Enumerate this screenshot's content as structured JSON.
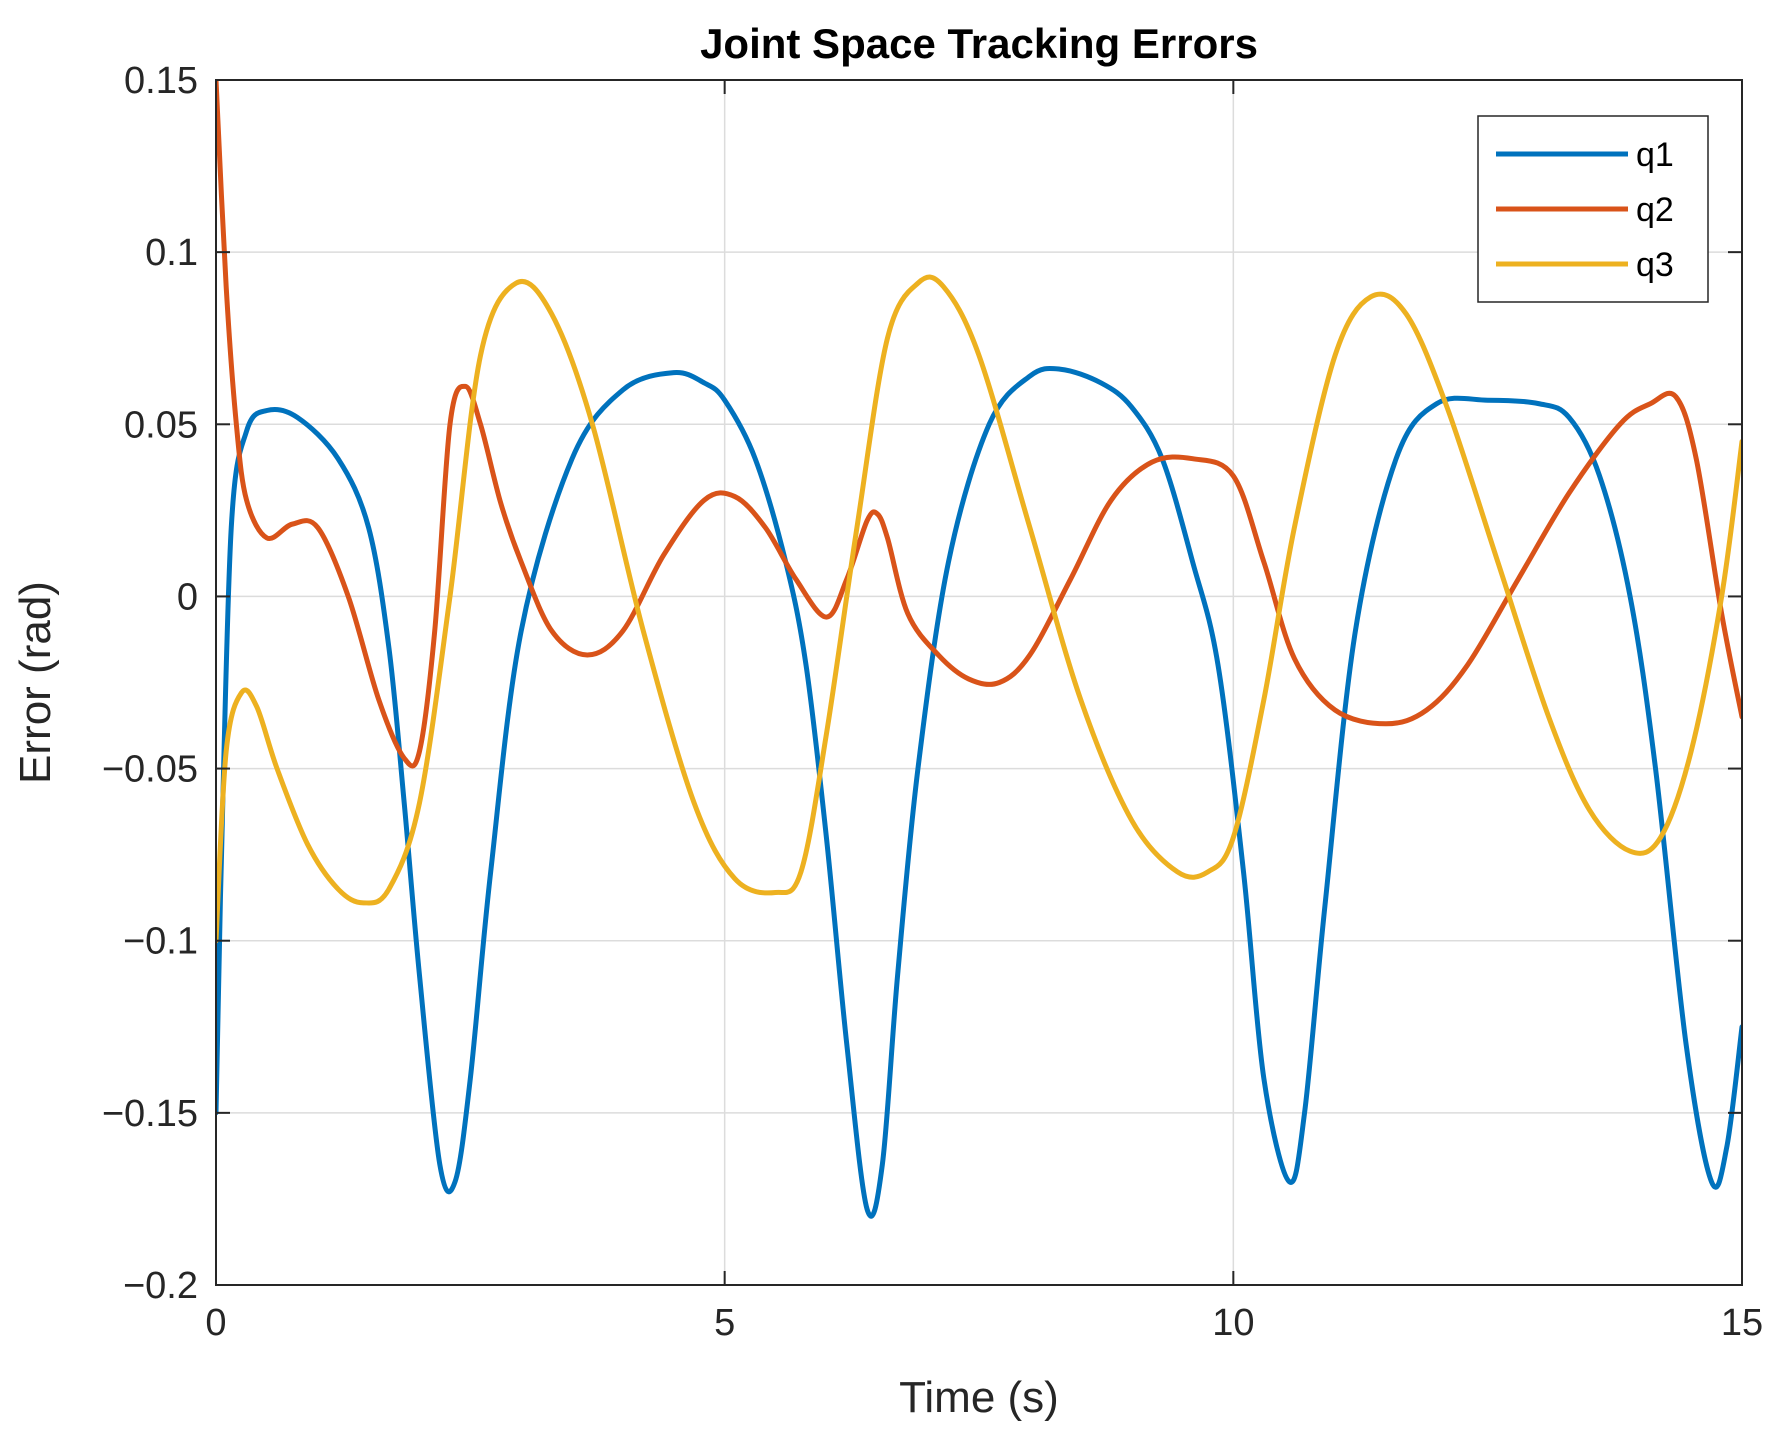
{
  "chart_data": {
    "type": "line",
    "title": "Joint Space Tracking Errors",
    "xlabel": "Time (s)",
    "ylabel": "Error (rad)",
    "xlim": [
      0,
      15
    ],
    "ylim": [
      -0.2,
      0.15
    ],
    "xticks": [
      0,
      5,
      10,
      15
    ],
    "xtick_labels": [
      "0",
      "5",
      "10",
      "15"
    ],
    "yticks": [
      -0.2,
      -0.15,
      -0.1,
      -0.05,
      0,
      0.05,
      0.1,
      0.15
    ],
    "ytick_labels": [
      "−0.2",
      "−0.15",
      "−0.1",
      "−0.05",
      "0",
      "0.05",
      "0.1",
      "0.15"
    ],
    "grid": true,
    "legend_position": "top-right",
    "series": [
      {
        "name": "q1",
        "color": "#0072BD",
        "x": [
          0,
          0.05,
          0.15,
          0.3,
          0.5,
          0.8,
          1.2,
          1.5,
          1.7,
          1.85,
          2.0,
          2.2,
          2.35,
          2.5,
          2.7,
          3.0,
          3.5,
          4.0,
          4.5,
          4.8,
          5.0,
          5.3,
          5.6,
          5.8,
          6.0,
          6.2,
          6.4,
          6.55,
          6.7,
          6.9,
          7.2,
          7.6,
          8.0,
          8.3,
          8.7,
          9.0,
          9.3,
          9.6,
          9.85,
          10.1,
          10.3,
          10.55,
          10.7,
          10.9,
          11.2,
          11.6,
          12.0,
          12.5,
          13.0,
          13.3,
          13.6,
          13.9,
          14.15,
          14.45,
          14.7,
          14.85,
          15.0
        ],
        "y": [
          -0.15,
          -0.08,
          0.02,
          0.048,
          0.054,
          0.052,
          0.04,
          0.02,
          -0.015,
          -0.06,
          -0.11,
          -0.165,
          -0.17,
          -0.14,
          -0.08,
          -0.01,
          0.04,
          0.06,
          0.065,
          0.062,
          0.057,
          0.04,
          0.01,
          -0.02,
          -0.07,
          -0.13,
          -0.178,
          -0.165,
          -0.11,
          -0.05,
          0.01,
          0.05,
          0.064,
          0.066,
          0.062,
          0.055,
          0.04,
          0.01,
          -0.02,
          -0.08,
          -0.14,
          -0.17,
          -0.15,
          -0.09,
          -0.01,
          0.04,
          0.056,
          0.057,
          0.056,
          0.052,
          0.035,
          0.0,
          -0.05,
          -0.13,
          -0.17,
          -0.16,
          -0.125
        ]
      },
      {
        "name": "q2",
        "color": "#D95319",
        "x": [
          0,
          0.1,
          0.2,
          0.3,
          0.5,
          0.75,
          1.0,
          1.3,
          1.6,
          1.85,
          2.0,
          2.15,
          2.3,
          2.45,
          2.6,
          2.8,
          3.0,
          3.3,
          3.65,
          4.0,
          4.4,
          4.8,
          5.1,
          5.4,
          5.7,
          6.0,
          6.2,
          6.4,
          6.5,
          6.6,
          6.8,
          7.1,
          7.4,
          7.7,
          8.0,
          8.4,
          8.8,
          9.2,
          9.6,
          10.0,
          10.3,
          10.6,
          11.0,
          11.5,
          11.9,
          12.3,
          12.8,
          13.3,
          13.8,
          14.1,
          14.35,
          14.55,
          14.8,
          15.0
        ],
        "y": [
          0.15,
          0.09,
          0.05,
          0.028,
          0.017,
          0.021,
          0.02,
          0.0,
          -0.03,
          -0.047,
          -0.045,
          -0.01,
          0.05,
          0.061,
          0.05,
          0.027,
          0.01,
          -0.01,
          -0.017,
          -0.01,
          0.012,
          0.028,
          0.029,
          0.02,
          0.005,
          -0.006,
          0.005,
          0.022,
          0.024,
          0.017,
          -0.005,
          -0.017,
          -0.024,
          -0.025,
          -0.017,
          0.005,
          0.028,
          0.039,
          0.04,
          0.035,
          0.01,
          -0.018,
          -0.033,
          -0.037,
          -0.033,
          -0.02,
          0.005,
          0.03,
          0.05,
          0.056,
          0.058,
          0.04,
          -0.005,
          -0.035
        ]
      },
      {
        "name": "q3",
        "color": "#EDB120",
        "x": [
          0,
          0.1,
          0.25,
          0.4,
          0.6,
          0.9,
          1.2,
          1.45,
          1.7,
          2.0,
          2.3,
          2.6,
          2.95,
          3.3,
          3.7,
          4.2,
          4.7,
          5.1,
          5.5,
          5.75,
          6.0,
          6.3,
          6.6,
          6.9,
          7.15,
          7.5,
          8.0,
          8.5,
          9.0,
          9.45,
          9.75,
          10.0,
          10.3,
          10.6,
          11.0,
          11.35,
          11.7,
          12.1,
          12.6,
          13.1,
          13.5,
          13.9,
          14.2,
          14.5,
          14.8,
          15.0
        ],
        "y": [
          -0.1,
          -0.045,
          -0.028,
          -0.032,
          -0.05,
          -0.072,
          -0.085,
          -0.089,
          -0.085,
          -0.06,
          0.0,
          0.07,
          0.091,
          0.082,
          0.05,
          -0.01,
          -0.06,
          -0.082,
          -0.086,
          -0.08,
          -0.04,
          0.02,
          0.075,
          0.091,
          0.09,
          0.07,
          0.02,
          -0.03,
          -0.065,
          -0.08,
          -0.08,
          -0.07,
          -0.03,
          0.02,
          0.07,
          0.087,
          0.082,
          0.055,
          0.01,
          -0.035,
          -0.062,
          -0.074,
          -0.07,
          -0.045,
          0.0,
          0.045
        ]
      }
    ]
  }
}
